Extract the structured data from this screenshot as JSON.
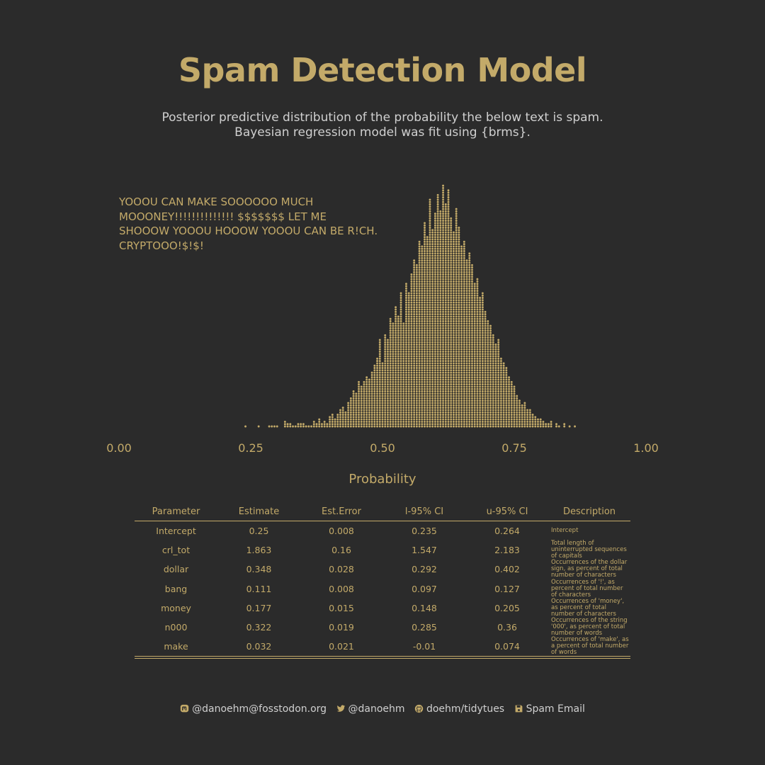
{
  "title": "Spam Detection Model",
  "subtitle": [
    "Posterior predictive distribution of the probability the below text is spam.",
    "Bayesian regression model was fit using {brms}."
  ],
  "spam_text": [
    "YOOOU CAN MAKE SOOOOOO MUCH",
    "MOOONEY!!!!!!!!!!!!!! $$$$$$$ LET ME",
    "SHOOOW YOOOU HOOOW YOOOU CAN BE R!CH.",
    "CRYPTOOO!$!$!"
  ],
  "colors": {
    "background": "#2b2b2b",
    "accent": "#c3aa69",
    "text": "#d0d0d0"
  },
  "chart_data": {
    "type": "dotplot",
    "xlabel": "Probability",
    "xlim": [
      0,
      1
    ],
    "xticks": [
      "0.00",
      "0.25",
      "0.50",
      "0.75",
      "1.00"
    ],
    "bin_width": 0.005,
    "bins": [
      [
        0.24,
        1
      ],
      [
        0.265,
        1
      ],
      [
        0.285,
        1
      ],
      [
        0.29,
        1
      ],
      [
        0.295,
        1
      ],
      [
        0.3,
        1
      ],
      [
        0.315,
        3
      ],
      [
        0.32,
        2
      ],
      [
        0.325,
        2
      ],
      [
        0.33,
        1
      ],
      [
        0.335,
        1
      ],
      [
        0.34,
        2
      ],
      [
        0.345,
        2
      ],
      [
        0.35,
        2
      ],
      [
        0.355,
        1
      ],
      [
        0.36,
        1
      ],
      [
        0.365,
        1
      ],
      [
        0.37,
        3
      ],
      [
        0.375,
        2
      ],
      [
        0.38,
        4
      ],
      [
        0.385,
        2
      ],
      [
        0.39,
        3
      ],
      [
        0.395,
        2
      ],
      [
        0.4,
        5
      ],
      [
        0.405,
        6
      ],
      [
        0.41,
        4
      ],
      [
        0.415,
        6
      ],
      [
        0.42,
        8
      ],
      [
        0.425,
        9
      ],
      [
        0.43,
        7
      ],
      [
        0.435,
        11
      ],
      [
        0.44,
        13
      ],
      [
        0.445,
        16
      ],
      [
        0.45,
        15
      ],
      [
        0.455,
        20
      ],
      [
        0.46,
        18
      ],
      [
        0.465,
        20
      ],
      [
        0.47,
        22
      ],
      [
        0.475,
        21
      ],
      [
        0.48,
        24
      ],
      [
        0.485,
        27
      ],
      [
        0.49,
        30
      ],
      [
        0.495,
        38
      ],
      [
        0.5,
        28
      ],
      [
        0.505,
        40
      ],
      [
        0.51,
        38
      ],
      [
        0.515,
        47
      ],
      [
        0.52,
        45
      ],
      [
        0.525,
        52
      ],
      [
        0.53,
        48
      ],
      [
        0.535,
        58
      ],
      [
        0.54,
        45
      ],
      [
        0.545,
        62
      ],
      [
        0.55,
        58
      ],
      [
        0.555,
        66
      ],
      [
        0.56,
        72
      ],
      [
        0.565,
        70
      ],
      [
        0.57,
        80
      ],
      [
        0.575,
        78
      ],
      [
        0.58,
        88
      ],
      [
        0.585,
        82
      ],
      [
        0.59,
        98
      ],
      [
        0.595,
        85
      ],
      [
        0.6,
        92
      ],
      [
        0.605,
        100
      ],
      [
        0.61,
        93
      ],
      [
        0.615,
        104
      ],
      [
        0.62,
        96
      ],
      [
        0.625,
        102
      ],
      [
        0.63,
        90
      ],
      [
        0.635,
        84
      ],
      [
        0.64,
        94
      ],
      [
        0.645,
        86
      ],
      [
        0.65,
        78
      ],
      [
        0.655,
        80
      ],
      [
        0.66,
        72
      ],
      [
        0.665,
        75
      ],
      [
        0.67,
        70
      ],
      [
        0.675,
        62
      ],
      [
        0.68,
        64
      ],
      [
        0.685,
        56
      ],
      [
        0.69,
        58
      ],
      [
        0.695,
        50
      ],
      [
        0.7,
        46
      ],
      [
        0.705,
        44
      ],
      [
        0.71,
        40
      ],
      [
        0.715,
        36
      ],
      [
        0.72,
        38
      ],
      [
        0.725,
        30
      ],
      [
        0.73,
        28
      ],
      [
        0.735,
        26
      ],
      [
        0.74,
        22
      ],
      [
        0.745,
        20
      ],
      [
        0.75,
        18
      ],
      [
        0.755,
        14
      ],
      [
        0.76,
        12
      ],
      [
        0.765,
        10
      ],
      [
        0.77,
        11
      ],
      [
        0.775,
        8
      ],
      [
        0.78,
        8
      ],
      [
        0.785,
        6
      ],
      [
        0.79,
        5
      ],
      [
        0.795,
        4
      ],
      [
        0.8,
        4
      ],
      [
        0.805,
        3
      ],
      [
        0.81,
        2
      ],
      [
        0.815,
        2
      ],
      [
        0.82,
        3
      ],
      [
        0.83,
        2
      ],
      [
        0.835,
        1
      ],
      [
        0.845,
        2
      ],
      [
        0.855,
        1
      ],
      [
        0.865,
        1
      ]
    ]
  },
  "table": {
    "headers": [
      "Parameter",
      "Estimate",
      "Est.Error",
      "l-95% CI",
      "u-95% CI",
      "Description"
    ],
    "rows": [
      [
        "Intercept",
        "0.25",
        "0.008",
        "0.235",
        "0.264",
        "Intercept"
      ],
      [
        "crl_tot",
        "1.863",
        "0.16",
        "1.547",
        "2.183",
        "Total length of uninterrupted sequences of capitals"
      ],
      [
        "dollar",
        "0.348",
        "0.028",
        "0.292",
        "0.402",
        "Occurrences of the dollar sign, as percent of total number of characters"
      ],
      [
        "bang",
        "0.111",
        "0.008",
        "0.097",
        "0.127",
        "Occurrences of '!', as percent of total number of characters"
      ],
      [
        "money",
        "0.177",
        "0.015",
        "0.148",
        "0.205",
        "Occurrences of 'money', as percent of total number of characters"
      ],
      [
        "n000",
        "0.322",
        "0.019",
        "0.285",
        "0.36",
        "Occurrences of the string '000', as percent of total number of words"
      ],
      [
        "make",
        "0.032",
        "0.021",
        "-0.01",
        "0.074",
        "Occurrences of 'make', as a percent of total number of words"
      ]
    ]
  },
  "footer": {
    "mastodon": "@danoehm@fosstodon.org",
    "twitter": "@danoehm",
    "github": "doehm/tidytues",
    "source": "Spam Email"
  }
}
